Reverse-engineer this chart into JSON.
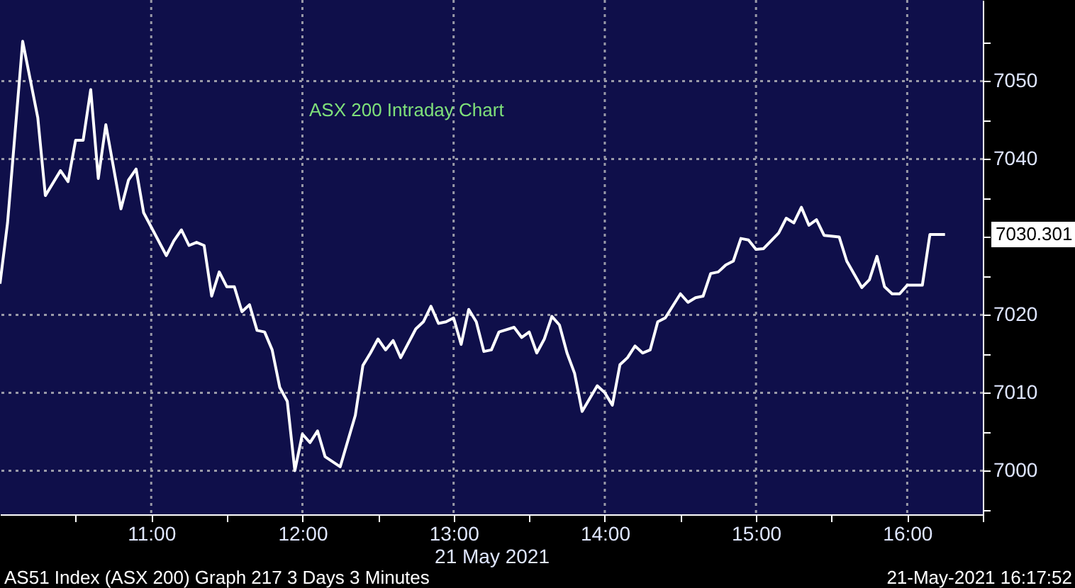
{
  "chart_data": {
    "type": "line",
    "title": "ASX 200 Intraday Chart",
    "xlabel": "21 May 2021",
    "x": [
      10.0,
      10.05,
      10.15,
      10.25,
      10.3,
      10.4,
      10.45,
      10.5,
      10.55,
      10.6,
      10.65,
      10.7,
      10.8,
      10.85,
      10.9,
      10.95,
      11.1,
      11.15,
      11.2,
      11.25,
      11.3,
      11.35,
      11.4,
      11.45,
      11.5,
      11.55,
      11.6,
      11.65,
      11.7,
      11.75,
      11.8,
      11.85,
      11.9,
      11.95,
      12.0,
      12.05,
      12.1,
      12.15,
      12.25,
      12.35,
      12.4,
      12.45,
      12.5,
      12.55,
      12.6,
      12.65,
      12.75,
      12.8,
      12.85,
      12.9,
      12.95,
      13.0,
      13.05,
      13.1,
      13.15,
      13.2,
      13.25,
      13.3,
      13.4,
      13.45,
      13.5,
      13.55,
      13.6,
      13.65,
      13.7,
      13.75,
      13.8,
      13.85,
      13.95,
      14.0,
      14.05,
      14.1,
      14.15,
      14.2,
      14.25,
      14.3,
      14.35,
      14.4,
      14.5,
      14.55,
      14.6,
      14.65,
      14.7,
      14.75,
      14.8,
      14.85,
      14.9,
      14.95,
      15.0,
      15.05,
      15.15,
      15.2,
      15.25,
      15.3,
      15.35,
      15.4,
      15.45,
      15.55,
      15.6,
      15.7,
      15.75,
      15.8,
      15.85,
      15.9,
      15.95,
      16.0,
      16.1,
      16.15,
      16.25
    ],
    "series": [
      {
        "color": "#ffffff",
        "values": [
          7024.0,
          7031.8,
          7055.1,
          7045.3,
          7035.3,
          7038.5,
          7037.1,
          7042.4,
          7042.4,
          7048.9,
          7037.5,
          7044.4,
          7033.6,
          7037.3,
          7038.7,
          7033.1,
          7027.6,
          7029.5,
          7030.9,
          7028.9,
          7029.3,
          7028.9,
          7022.4,
          7025.5,
          7023.6,
          7023.6,
          7020.4,
          7021.3,
          7018.0,
          7017.8,
          7015.5,
          7010.7,
          7008.9,
          7000.0,
          7004.7,
          7003.6,
          7005.1,
          7001.8,
          7000.5,
          7007.1,
          7013.5,
          7015.1,
          7016.9,
          7015.5,
          7016.7,
          7014.5,
          7018.2,
          7019.1,
          7021.1,
          7018.9,
          7019.1,
          7019.6,
          7016.2,
          7020.7,
          7019.1,
          7015.3,
          7015.5,
          7017.8,
          7018.4,
          7017.1,
          7017.8,
          7015.1,
          7016.9,
          7019.8,
          7018.7,
          7015.1,
          7012.5,
          7007.6,
          7010.9,
          7010.0,
          7008.4,
          7013.6,
          7014.5,
          7016.0,
          7015.1,
          7015.5,
          7019.1,
          7019.6,
          7022.7,
          7021.6,
          7022.2,
          7022.4,
          7025.3,
          7025.5,
          7026.4,
          7026.9,
          7029.8,
          7029.6,
          7028.4,
          7028.5,
          7030.5,
          7032.4,
          7031.8,
          7033.8,
          7031.5,
          7032.2,
          7030.2,
          7030.0,
          7026.9,
          7023.5,
          7024.5,
          7027.5,
          7023.6,
          7022.7,
          7022.7,
          7023.8,
          7023.8,
          7030.3,
          7030.3
        ]
      }
    ],
    "xlim": [
      10.0,
      16.5
    ],
    "xticks": [
      {
        "value": 10.5,
        "label": null
      },
      {
        "value": 11,
        "label": "11:00"
      },
      {
        "value": 11.5,
        "label": null
      },
      {
        "value": 12,
        "label": "12:00"
      },
      {
        "value": 12.5,
        "label": null
      },
      {
        "value": 13,
        "label": "13:00"
      },
      {
        "value": 13.5,
        "label": null
      },
      {
        "value": 14,
        "label": "14:00"
      },
      {
        "value": 14.5,
        "label": null
      },
      {
        "value": 15,
        "label": "15:00"
      },
      {
        "value": 15.5,
        "label": null
      },
      {
        "value": 16,
        "label": "16:00"
      },
      {
        "value": 16.5,
        "label": null
      }
    ],
    "ylim": [
      6994.4,
      7060.4
    ],
    "yticks": [
      {
        "value": 6995,
        "label": null
      },
      7000,
      {
        "value": 7005,
        "label": null
      },
      7010,
      {
        "value": 7015,
        "label": null
      },
      7020,
      {
        "value": 7025,
        "label": null
      },
      {
        "value": 7030,
        "label": null
      },
      {
        "value": 7035,
        "label": null
      },
      7040,
      {
        "value": 7045,
        "label": null
      },
      7050,
      {
        "value": 7055,
        "label": null
      }
    ],
    "grid": true,
    "annotations": [
      "7030.301",
      "AS51 Index (ASX 200) Graph 217 3 Days 3 Minutes",
      "21-May-2021 16:17:52"
    ]
  }
}
